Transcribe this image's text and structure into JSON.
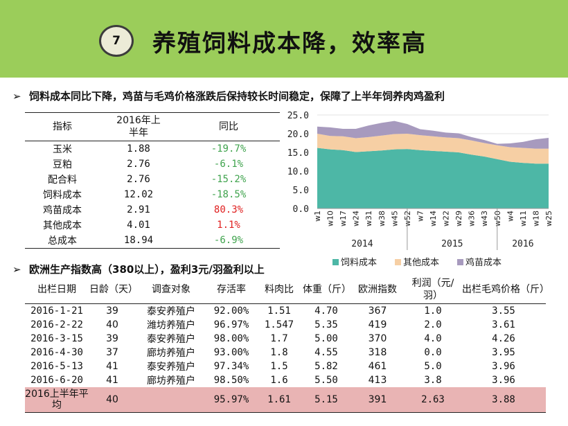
{
  "header": {
    "number": "7",
    "title": "养殖饲料成本降，效率高"
  },
  "bullet1": "饲料成本同比下降，鸡苗与毛鸡价格涨跌后保持较长时间稳定，保障了上半年饲养肉鸡盈利",
  "bullet2": "欧洲生产指数高（380以上），盈利3元/羽盈利以上",
  "bullet_marker": "➢",
  "cost_table": {
    "headers": {
      "indicator": "指标",
      "period": "2016年上半年",
      "yoy": "同比"
    },
    "rows": [
      {
        "name": "玉米",
        "value": "1.88",
        "yoy": "-19.7%"
      },
      {
        "name": "豆粕",
        "value": "2.76",
        "yoy": "-6.1%"
      },
      {
        "name": "配合料",
        "value": "2.76",
        "yoy": "-15.2%"
      },
      {
        "name": "饲料成本",
        "value": "12.02",
        "yoy": "-18.5%"
      },
      {
        "name": "鸡苗成本",
        "value": "2.91",
        "yoy": "80.3%"
      },
      {
        "name": "其他成本",
        "value": "4.01",
        "yoy": "1.1%"
      },
      {
        "name": "总成本",
        "value": "18.94",
        "yoy": "-6.9%"
      }
    ],
    "colors": {
      "negative": "#3fa34d",
      "positive": "#e02020"
    }
  },
  "chart_data": {
    "type": "area",
    "stacked": true,
    "ylim": [
      0,
      25
    ],
    "yticks": [
      "0.0",
      "5.0",
      "10.0",
      "15.0",
      "20.0",
      "25.0"
    ],
    "xticks": [
      "w1",
      "w10",
      "w17",
      "w24",
      "w31",
      "w38",
      "w45",
      "w52",
      "w7",
      "w14",
      "w22",
      "w29",
      "w36",
      "w43",
      "w50",
      "w4",
      "w11",
      "w18",
      "w25"
    ],
    "years": [
      "2014",
      "2015",
      "2016"
    ],
    "legend_position": "bottom",
    "series": [
      {
        "name": "饲料成本",
        "color": "#4db7a6",
        "values": [
          16.2,
          15.8,
          15.6,
          15.1,
          15.3,
          15.5,
          15.8,
          15.9,
          15.6,
          15.4,
          15.2,
          15.0,
          14.4,
          13.9,
          13.2,
          12.5,
          12.2,
          12.0,
          12.0
        ]
      },
      {
        "name": "其他成本",
        "color": "#f6cfa4",
        "values": [
          3.8,
          3.6,
          3.7,
          3.7,
          3.8,
          4.0,
          4.1,
          4.1,
          4.0,
          3.9,
          3.8,
          3.8,
          3.8,
          3.6,
          3.7,
          3.9,
          4.0,
          4.0,
          4.0
        ]
      },
      {
        "name": "鸡苗成本",
        "color": "#a79abe",
        "values": [
          1.9,
          2.3,
          2.0,
          2.5,
          3.1,
          3.4,
          3.5,
          2.6,
          1.6,
          1.5,
          1.3,
          1.3,
          0.9,
          0.8,
          0.4,
          1.0,
          1.6,
          2.5,
          2.9
        ]
      }
    ]
  },
  "farm_table": {
    "headers": [
      "出栏日期",
      "日龄（天）",
      "调查对象",
      "存活率",
      "料肉比",
      "体重（斤）",
      "欧洲指数",
      "利润（元/羽）",
      "出栏毛鸡价格（斤）"
    ],
    "rows": [
      [
        "2016-1-21",
        "39",
        "泰安养殖户",
        "92.00%",
        "1.51",
        "4.70",
        "367",
        "1.0",
        "3.55"
      ],
      [
        "2016-2-22",
        "40",
        "潍坊养殖户",
        "96.97%",
        "1.547",
        "5.35",
        "419",
        "2.0",
        "3.61"
      ],
      [
        "2016-3-15",
        "39",
        "泰安养殖户",
        "98.00%",
        "1.7",
        "5.00",
        "370",
        "4.0",
        "4.26"
      ],
      [
        "2016-4-30",
        "37",
        "廊坊养殖户",
        "93.00%",
        "1.8",
        "4.55",
        "318",
        "0.0",
        "3.95"
      ],
      [
        "2016-5-13",
        "41",
        "泰安养殖户",
        "97.34%",
        "1.5",
        "5.82",
        "461",
        "5.0",
        "3.96"
      ],
      [
        "2016-6-20",
        "41",
        "廊坊养殖户",
        "98.50%",
        "1.6",
        "5.50",
        "413",
        "3.8",
        "3.96"
      ]
    ],
    "average": [
      "2016上半年平均",
      "40",
      "",
      "95.97%",
      "1.61",
      "5.15",
      "391",
      "2.63",
      "3.88"
    ],
    "highlight_color": "#e9b4b4"
  }
}
